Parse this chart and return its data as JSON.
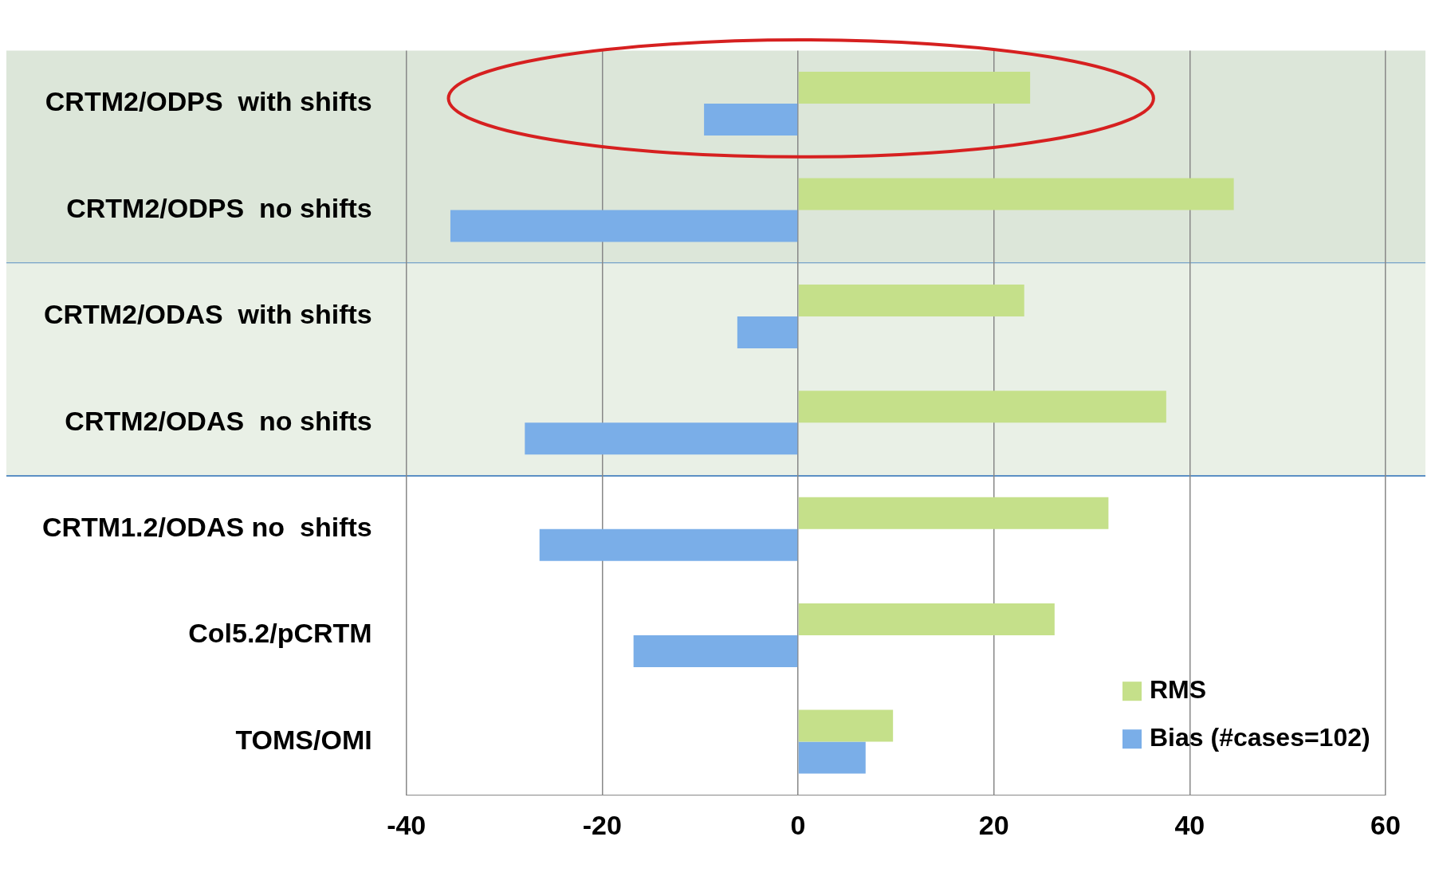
{
  "chart_data": {
    "type": "bar",
    "orientation": "horizontal",
    "categories": [
      "CRTM2/ODPS  with shifts",
      "CRTM2/ODPS  no shifts",
      "CRTM2/ODAS  with shifts",
      "CRTM2/ODAS  no shifts",
      "CRTM1.2/ODAS no  shifts",
      "Col5.2/pCRTM",
      "TOMS/OMI"
    ],
    "series": [
      {
        "name": "RMS",
        "color": "#c5e08a",
        "values": [
          23.7,
          44.5,
          23.1,
          37.6,
          31.7,
          26.2,
          9.7
        ]
      },
      {
        "name": "Bias (#cases=102)",
        "color": "#7aaee8",
        "values": [
          -9.6,
          -35.5,
          -6.2,
          -27.9,
          -26.4,
          -16.8,
          6.9
        ]
      }
    ],
    "xlim": [
      -40,
      60
    ],
    "xticks": [
      -40,
      -20,
      0,
      20,
      40,
      60
    ],
    "grid": "x",
    "legend": "bottom right",
    "bands": [
      {
        "axis": "y",
        "from": "CRTM2/ODPS  with shifts",
        "to": "CRTM2/ODPS  no shifts",
        "color": "#dce6d9"
      },
      {
        "axis": "y",
        "from": "CRTM2/ODAS  with shifts",
        "to": "CRTM2/ODAS  no shifts",
        "color": "#e9f0e6"
      }
    ]
  }
}
